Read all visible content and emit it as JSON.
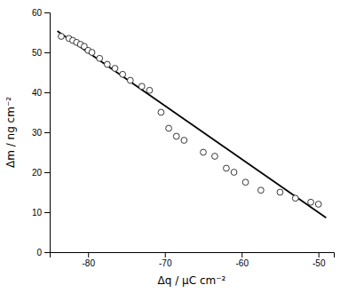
{
  "chart_data": {
    "type": "scatter",
    "xlabel": "Δq / μC cm⁻²",
    "ylabel": "Δm / ng cm⁻²",
    "xlim": [
      -85,
      -48
    ],
    "ylim": [
      0,
      60
    ],
    "xticks": [
      -80,
      -70,
      -60,
      -50
    ],
    "yticks": [
      0,
      10,
      20,
      30,
      40,
      50,
      60
    ],
    "grid": false,
    "series": [
      {
        "type": "scatter",
        "marker": "circle",
        "color": "#222222",
        "x": [
          -83.5,
          -82.5,
          -82,
          -81.5,
          -81,
          -80.5,
          -80,
          -79.5,
          -78.5,
          -77.5,
          -76.5,
          -75.5,
          -74.5,
          -73,
          -72,
          -70.5,
          -69.5,
          -68.5,
          -67.5,
          -65,
          -63.5,
          -62,
          -61,
          -59.5,
          -57.5,
          -55,
          -53,
          -51,
          -50
        ],
        "values": [
          54,
          53.5,
          53,
          52.5,
          52,
          51.5,
          50.5,
          50,
          48.5,
          47,
          46,
          44.5,
          43,
          41.5,
          40.5,
          35,
          31,
          29,
          28,
          25,
          24,
          21,
          20,
          17.5,
          15.5,
          15,
          13.5,
          12.5,
          12
        ]
      },
      {
        "type": "line",
        "line_style": "solid",
        "color": "#000000",
        "x": [
          -84,
          -49
        ],
        "values": [
          55.34,
          8.615
        ]
      }
    ]
  }
}
